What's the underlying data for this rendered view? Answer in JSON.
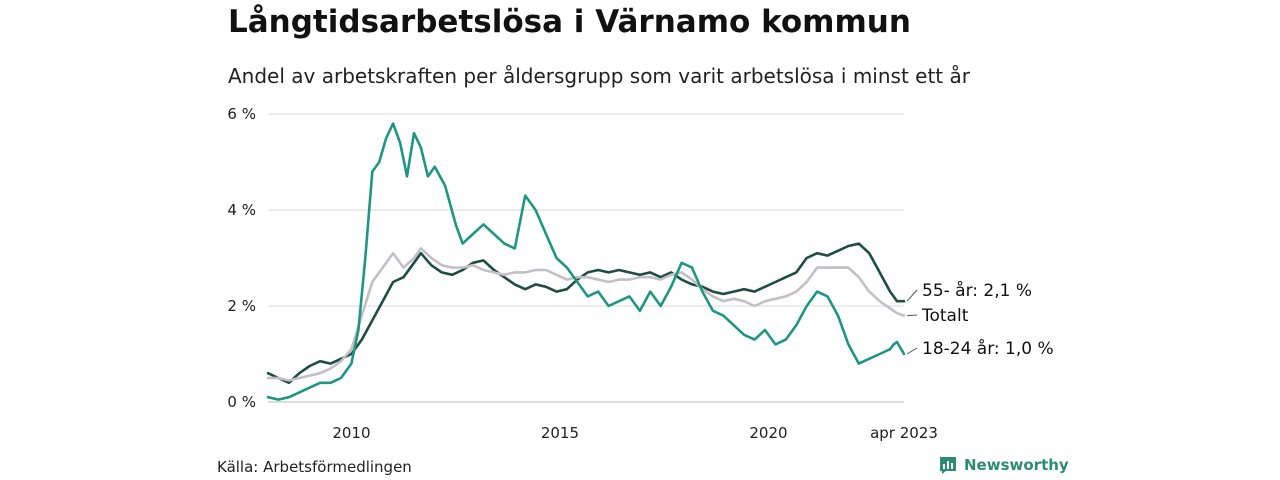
{
  "title": "Långtidsarbetslösa i Värnamo kommun",
  "subtitle": "Andel av arbetskraften per åldersgrupp som varit arbetslösa i minst ett år",
  "source": "Källa: Arbetsförmedlingen",
  "brand": "Newsworthy",
  "colors": {
    "series_55": "#1e4d42",
    "series_total": "#c4bfc6",
    "series_18_24": "#1f9683",
    "grid": "#d9d9d9",
    "brand": "#2e8b74"
  },
  "chart_data": {
    "type": "line",
    "title": "Långtidsarbetslösa i Värnamo kommun",
    "subtitle": "Andel av arbetskraften per åldersgrupp som varit arbetslösa i minst ett år",
    "xlabel": "",
    "ylabel": "",
    "ylim": [
      0,
      6
    ],
    "xlim": [
      "2008-01",
      "2023-04"
    ],
    "y_ticks": [
      "0 %",
      "2 %",
      "4 %",
      "6 %"
    ],
    "y_tick_values": [
      0,
      2,
      4,
      6
    ],
    "x_ticks": [
      "2010",
      "2015",
      "2020",
      "apr 2023"
    ],
    "x_tick_values": [
      "2010-01",
      "2015-01",
      "2020-01",
      "2023-04"
    ],
    "grid": true,
    "legend": "end-of-line labels",
    "series": [
      {
        "key": "series_55",
        "end_label": "55- år: 2,1 %",
        "points": [
          [
            "2008-01",
            0.6
          ],
          [
            "2008-04",
            0.5
          ],
          [
            "2008-07",
            0.4
          ],
          [
            "2008-10",
            0.6
          ],
          [
            "2009-01",
            0.75
          ],
          [
            "2009-04",
            0.85
          ],
          [
            "2009-07",
            0.8
          ],
          [
            "2009-10",
            0.9
          ],
          [
            "2010-01",
            1.0
          ],
          [
            "2010-04",
            1.3
          ],
          [
            "2010-07",
            1.7
          ],
          [
            "2010-10",
            2.1
          ],
          [
            "2011-01",
            2.5
          ],
          [
            "2011-04",
            2.6
          ],
          [
            "2011-07",
            2.9
          ],
          [
            "2011-09",
            3.1
          ],
          [
            "2011-12",
            2.85
          ],
          [
            "2012-03",
            2.7
          ],
          [
            "2012-06",
            2.65
          ],
          [
            "2012-09",
            2.75
          ],
          [
            "2012-12",
            2.9
          ],
          [
            "2013-03",
            2.95
          ],
          [
            "2013-06",
            2.75
          ],
          [
            "2013-09",
            2.6
          ],
          [
            "2013-12",
            2.45
          ],
          [
            "2014-03",
            2.35
          ],
          [
            "2014-06",
            2.45
          ],
          [
            "2014-09",
            2.4
          ],
          [
            "2014-12",
            2.3
          ],
          [
            "2015-03",
            2.35
          ],
          [
            "2015-06",
            2.55
          ],
          [
            "2015-09",
            2.7
          ],
          [
            "2015-12",
            2.75
          ],
          [
            "2016-03",
            2.7
          ],
          [
            "2016-06",
            2.75
          ],
          [
            "2016-09",
            2.7
          ],
          [
            "2016-12",
            2.65
          ],
          [
            "2017-03",
            2.7
          ],
          [
            "2017-06",
            2.6
          ],
          [
            "2017-09",
            2.7
          ],
          [
            "2017-12",
            2.55
          ],
          [
            "2018-03",
            2.45
          ],
          [
            "2018-06",
            2.4
          ],
          [
            "2018-09",
            2.3
          ],
          [
            "2018-12",
            2.25
          ],
          [
            "2019-03",
            2.3
          ],
          [
            "2019-06",
            2.35
          ],
          [
            "2019-09",
            2.3
          ],
          [
            "2019-12",
            2.4
          ],
          [
            "2020-03",
            2.5
          ],
          [
            "2020-06",
            2.6
          ],
          [
            "2020-09",
            2.7
          ],
          [
            "2020-12",
            3.0
          ],
          [
            "2021-03",
            3.1
          ],
          [
            "2021-06",
            3.05
          ],
          [
            "2021-09",
            3.15
          ],
          [
            "2021-12",
            3.25
          ],
          [
            "2022-03",
            3.3
          ],
          [
            "2022-06",
            3.1
          ],
          [
            "2022-09",
            2.7
          ],
          [
            "2022-12",
            2.3
          ],
          [
            "2023-01",
            2.2
          ],
          [
            "2023-02",
            2.1
          ],
          [
            "2023-04",
            2.1
          ]
        ]
      },
      {
        "key": "series_total",
        "end_label": "Totalt",
        "points": [
          [
            "2008-01",
            0.5
          ],
          [
            "2008-04",
            0.5
          ],
          [
            "2008-07",
            0.45
          ],
          [
            "2008-10",
            0.5
          ],
          [
            "2009-01",
            0.55
          ],
          [
            "2009-04",
            0.6
          ],
          [
            "2009-07",
            0.7
          ],
          [
            "2009-10",
            0.85
          ],
          [
            "2010-01",
            1.1
          ],
          [
            "2010-04",
            1.8
          ],
          [
            "2010-07",
            2.5
          ],
          [
            "2010-10",
            2.8
          ],
          [
            "2011-01",
            3.1
          ],
          [
            "2011-04",
            2.8
          ],
          [
            "2011-07",
            3.0
          ],
          [
            "2011-09",
            3.2
          ],
          [
            "2011-12",
            3.0
          ],
          [
            "2012-03",
            2.85
          ],
          [
            "2012-06",
            2.8
          ],
          [
            "2012-09",
            2.8
          ],
          [
            "2012-12",
            2.85
          ],
          [
            "2013-03",
            2.75
          ],
          [
            "2013-06",
            2.7
          ],
          [
            "2013-09",
            2.65
          ],
          [
            "2013-12",
            2.7
          ],
          [
            "2014-03",
            2.7
          ],
          [
            "2014-06",
            2.75
          ],
          [
            "2014-09",
            2.75
          ],
          [
            "2014-12",
            2.65
          ],
          [
            "2015-03",
            2.55
          ],
          [
            "2015-06",
            2.6
          ],
          [
            "2015-09",
            2.6
          ],
          [
            "2015-12",
            2.55
          ],
          [
            "2016-03",
            2.5
          ],
          [
            "2016-06",
            2.55
          ],
          [
            "2016-09",
            2.55
          ],
          [
            "2016-12",
            2.6
          ],
          [
            "2017-03",
            2.6
          ],
          [
            "2017-06",
            2.55
          ],
          [
            "2017-09",
            2.65
          ],
          [
            "2017-12",
            2.7
          ],
          [
            "2018-03",
            2.55
          ],
          [
            "2018-06",
            2.35
          ],
          [
            "2018-09",
            2.2
          ],
          [
            "2018-12",
            2.1
          ],
          [
            "2019-03",
            2.15
          ],
          [
            "2019-06",
            2.1
          ],
          [
            "2019-09",
            2.0
          ],
          [
            "2019-12",
            2.1
          ],
          [
            "2020-03",
            2.15
          ],
          [
            "2020-06",
            2.2
          ],
          [
            "2020-09",
            2.3
          ],
          [
            "2020-12",
            2.5
          ],
          [
            "2021-03",
            2.8
          ],
          [
            "2021-06",
            2.8
          ],
          [
            "2021-09",
            2.8
          ],
          [
            "2021-12",
            2.8
          ],
          [
            "2022-03",
            2.6
          ],
          [
            "2022-06",
            2.3
          ],
          [
            "2022-09",
            2.1
          ],
          [
            "2022-12",
            1.95
          ],
          [
            "2023-01",
            1.9
          ],
          [
            "2023-02",
            1.85
          ],
          [
            "2023-04",
            1.8
          ]
        ]
      },
      {
        "key": "series_18_24",
        "end_label": "18-24 år: 1,0 %",
        "points": [
          [
            "2008-01",
            0.1
          ],
          [
            "2008-04",
            0.05
          ],
          [
            "2008-07",
            0.1
          ],
          [
            "2008-10",
            0.2
          ],
          [
            "2009-01",
            0.3
          ],
          [
            "2009-04",
            0.4
          ],
          [
            "2009-07",
            0.4
          ],
          [
            "2009-10",
            0.5
          ],
          [
            "2010-01",
            0.8
          ],
          [
            "2010-03",
            1.5
          ],
          [
            "2010-05",
            3.0
          ],
          [
            "2010-07",
            4.8
          ],
          [
            "2010-09",
            5.0
          ],
          [
            "2010-11",
            5.5
          ],
          [
            "2011-01",
            5.8
          ],
          [
            "2011-03",
            5.4
          ],
          [
            "2011-05",
            4.7
          ],
          [
            "2011-07",
            5.6
          ],
          [
            "2011-09",
            5.3
          ],
          [
            "2011-11",
            4.7
          ],
          [
            "2012-01",
            4.9
          ],
          [
            "2012-04",
            4.5
          ],
          [
            "2012-07",
            3.7
          ],
          [
            "2012-09",
            3.3
          ],
          [
            "2012-12",
            3.5
          ],
          [
            "2013-03",
            3.7
          ],
          [
            "2013-06",
            3.5
          ],
          [
            "2013-09",
            3.3
          ],
          [
            "2013-12",
            3.2
          ],
          [
            "2014-03",
            4.3
          ],
          [
            "2014-06",
            4.0
          ],
          [
            "2014-09",
            3.5
          ],
          [
            "2014-12",
            3.0
          ],
          [
            "2015-03",
            2.8
          ],
          [
            "2015-06",
            2.5
          ],
          [
            "2015-09",
            2.2
          ],
          [
            "2015-12",
            2.3
          ],
          [
            "2016-03",
            2.0
          ],
          [
            "2016-06",
            2.1
          ],
          [
            "2016-09",
            2.2
          ],
          [
            "2016-12",
            1.9
          ],
          [
            "2017-03",
            2.3
          ],
          [
            "2017-06",
            2.0
          ],
          [
            "2017-09",
            2.4
          ],
          [
            "2017-12",
            2.9
          ],
          [
            "2018-03",
            2.8
          ],
          [
            "2018-06",
            2.3
          ],
          [
            "2018-09",
            1.9
          ],
          [
            "2018-12",
            1.8
          ],
          [
            "2019-03",
            1.6
          ],
          [
            "2019-06",
            1.4
          ],
          [
            "2019-09",
            1.3
          ],
          [
            "2019-12",
            1.5
          ],
          [
            "2020-03",
            1.2
          ],
          [
            "2020-06",
            1.3
          ],
          [
            "2020-09",
            1.6
          ],
          [
            "2020-12",
            2.0
          ],
          [
            "2021-03",
            2.3
          ],
          [
            "2021-06",
            2.2
          ],
          [
            "2021-09",
            1.8
          ],
          [
            "2021-12",
            1.2
          ],
          [
            "2022-03",
            0.8
          ],
          [
            "2022-06",
            0.9
          ],
          [
            "2022-09",
            1.0
          ],
          [
            "2022-12",
            1.1
          ],
          [
            "2023-01",
            1.2
          ],
          [
            "2023-02",
            1.25
          ],
          [
            "2023-04",
            1.0
          ]
        ]
      }
    ]
  }
}
